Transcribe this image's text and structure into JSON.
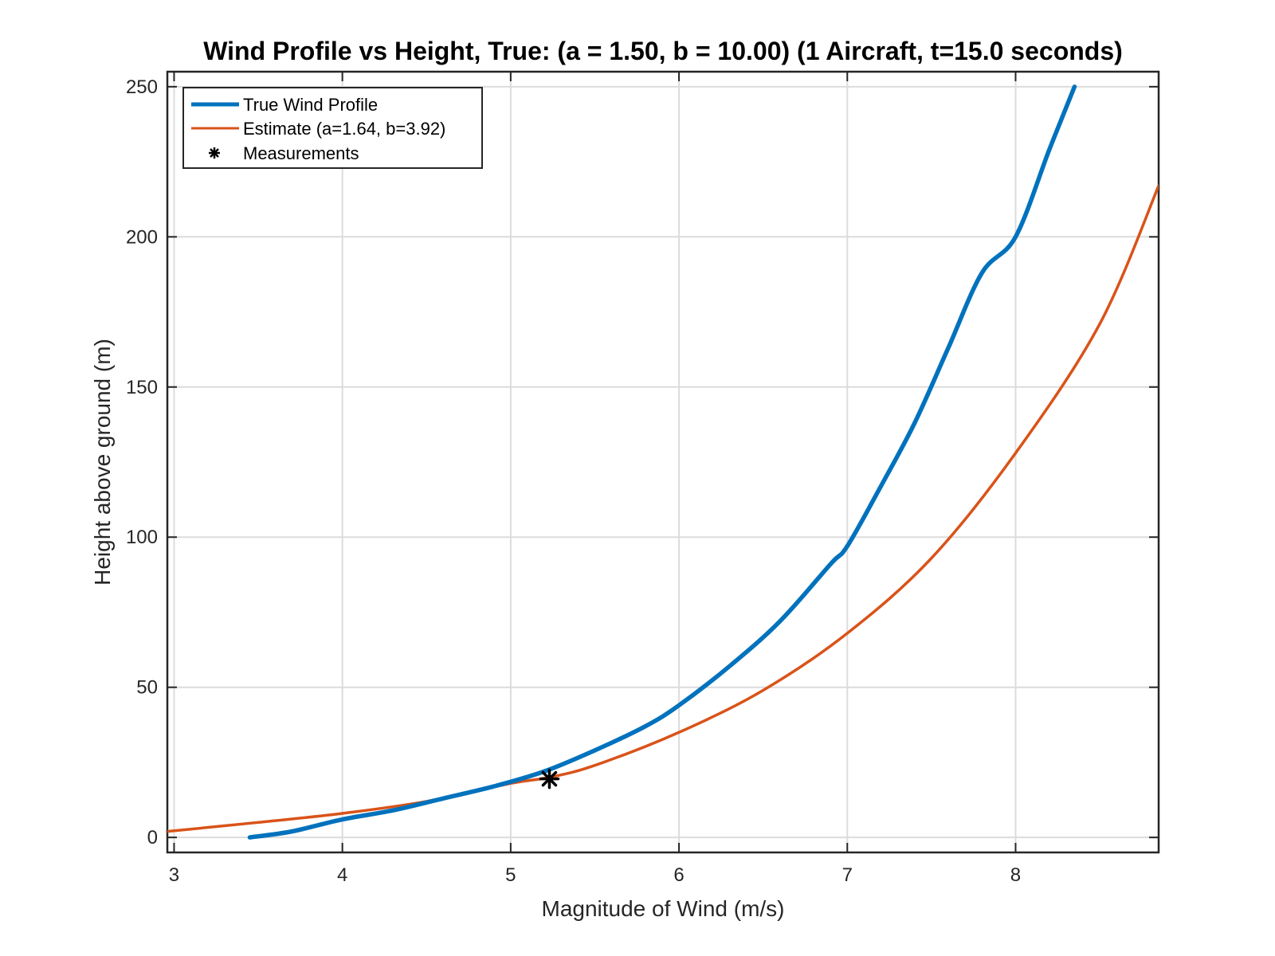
{
  "chart_data": {
    "type": "line",
    "title": "Wind Profile vs Height, True: (a = 1.50, b = 10.00) (1 Aircraft, t=15.0 seconds)",
    "xlabel": "Magnitude of Wind (m/s)",
    "ylabel": "Height above ground (m)",
    "xlim": [
      2.96,
      8.85
    ],
    "ylim": [
      -5,
      255
    ],
    "xticks": [
      3,
      4,
      5,
      6,
      7,
      8
    ],
    "yticks": [
      0,
      50,
      100,
      150,
      200,
      250
    ],
    "grid": true,
    "legend_position": "top-left",
    "series": [
      {
        "name": "True Wind Profile",
        "kind": "line",
        "color": "#0072BD",
        "x": [
          3.45,
          3.7,
          4.0,
          4.3,
          4.6,
          4.9,
          5.2,
          5.5,
          5.8,
          6.0,
          6.3,
          6.6,
          6.9,
          7.0,
          7.2,
          7.4,
          7.6,
          7.8,
          8.0,
          8.2,
          8.35
        ],
        "y": [
          0,
          2,
          6,
          9,
          13,
          17,
          22,
          29,
          37,
          44,
          57,
          72,
          91,
          97,
          117,
          138,
          163,
          188,
          200,
          229,
          250
        ]
      },
      {
        "name": "Estimate (a=1.64, b=3.92)",
        "kind": "line",
        "color": "#D95319",
        "x": [
          2.96,
          3.5,
          4.0,
          4.5,
          5.0,
          5.23,
          5.5,
          6.0,
          6.5,
          7.0,
          7.5,
          8.0,
          8.5,
          8.85
        ],
        "y": [
          2,
          5,
          8,
          12,
          18,
          20,
          24,
          35,
          49,
          68,
          93,
          128,
          171,
          217
        ]
      },
      {
        "name": "Measurements",
        "kind": "marker",
        "marker": "asterisk",
        "color": "#000000",
        "x": [
          5.23
        ],
        "y": [
          19.5
        ]
      }
    ]
  }
}
